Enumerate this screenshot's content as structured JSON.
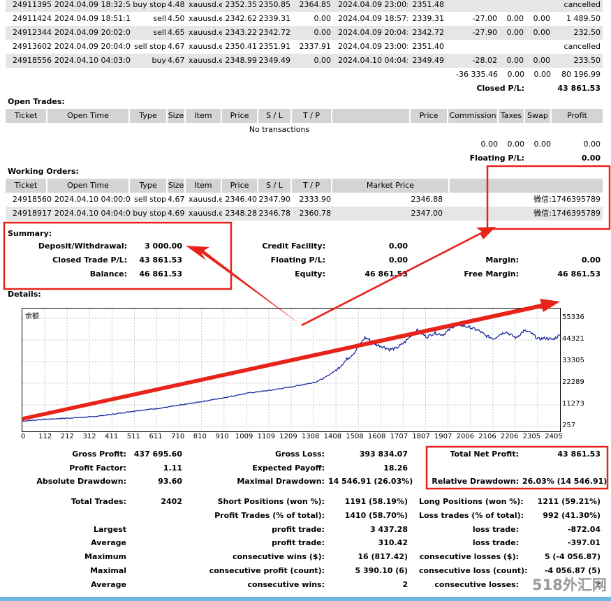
{
  "history_rows": [
    {
      "ticket": "24911395",
      "open_time": "2024.04.09 18:32:55",
      "type": "buy stop",
      "size": "4.48",
      "item": "xauusd.e",
      "price": "2352.35",
      "sl": "2350.85",
      "tp": "2364.85",
      "close_time": "2024.04.09 23:00:01",
      "close_price": "2351.48",
      "commission": "",
      "taxes": "",
      "swap": "",
      "profit": "cancelled"
    },
    {
      "ticket": "24911424",
      "open_time": "2024.04.09 18:51:15",
      "type": "sell",
      "size": "4.50",
      "item": "xauusd.e",
      "price": "2342.62",
      "sl": "2339.31",
      "tp": "0.00",
      "close_time": "2024.04.09 18:57:04",
      "close_price": "2339.31",
      "commission": "-27.00",
      "taxes": "0.00",
      "swap": "0.00",
      "profit": "1 489.50"
    },
    {
      "ticket": "24912344",
      "open_time": "2024.04.09 20:02:01",
      "type": "sell",
      "size": "4.65",
      "item": "xauusd.e",
      "price": "2343.22",
      "sl": "2342.72",
      "tp": "0.00",
      "close_time": "2024.04.09 20:04:07",
      "close_price": "2342.72",
      "commission": "-27.90",
      "taxes": "0.00",
      "swap": "0.00",
      "profit": "232.50"
    },
    {
      "ticket": "24913602",
      "open_time": "2024.04.09 20:04:09",
      "type": "sell stop",
      "size": "4.67",
      "item": "xauusd.e",
      "price": "2350.41",
      "sl": "2351.91",
      "tp": "2337.91",
      "close_time": "2024.04.09 23:00:02",
      "close_price": "2351.40",
      "commission": "",
      "taxes": "",
      "swap": "",
      "profit": "cancelled"
    },
    {
      "ticket": "24918556",
      "open_time": "2024.04.10 04:03:09",
      "type": "buy",
      "size": "4.67",
      "item": "xauusd.e",
      "price": "2348.99",
      "sl": "2349.49",
      "tp": "0.00",
      "close_time": "2024.04.10 04:04:05",
      "close_price": "2349.49",
      "commission": "-28.02",
      "taxes": "0.00",
      "swap": "0.00",
      "profit": "233.50"
    }
  ],
  "history_totals": {
    "commission": "-36 335.46",
    "taxes": "0.00",
    "swap": "0.00",
    "profit": "80 196.99"
  },
  "closed_pl": {
    "label": "Closed P/L:",
    "value": "43 861.53"
  },
  "open_trades": {
    "title": "Open Trades:",
    "headers": {
      "ticket": "Ticket",
      "open_time": "Open Time",
      "type": "Type",
      "size": "Size",
      "item": "Item",
      "price": "Price",
      "sl": "S / L",
      "tp": "T / P",
      "price2": "Price",
      "commission": "Commission",
      "taxes": "Taxes",
      "swap": "Swap",
      "profit": "Profit"
    },
    "empty": "No transactions",
    "totals": {
      "commission": "0.00",
      "taxes": "0.00",
      "swap": "0.00",
      "profit": "0.00"
    },
    "floating": {
      "label": "Floating P/L:",
      "value": "0.00"
    }
  },
  "working_orders": {
    "title": "Working Orders:",
    "headers": {
      "ticket": "Ticket",
      "open_time": "Open Time",
      "type": "Type",
      "size": "Size",
      "item": "Item",
      "price": "Price",
      "sl": "S / L",
      "tp": "T / P",
      "market_price": "Market Price"
    },
    "rows": [
      {
        "ticket": "24918560",
        "open_time": "2024.04.10 04:00:01",
        "type": "sell stop",
        "size": "4.67",
        "item": "xauusd.e",
        "price": "2346.40",
        "sl": "2347.90",
        "tp": "2333.90",
        "market_price": "2346.88",
        "comment": "微信:1746395789"
      },
      {
        "ticket": "24918917",
        "open_time": "2024.04.10 04:04:06",
        "type": "buy stop",
        "size": "4.69",
        "item": "xauusd.e",
        "price": "2348.28",
        "sl": "2346.78",
        "tp": "2360.78",
        "market_price": "2347.00",
        "comment": "微信:1746395789"
      }
    ]
  },
  "summary": {
    "title": "Summary:",
    "deposit": {
      "label": "Deposit/Withdrawal:",
      "value": "3 000.00"
    },
    "closed_trade": {
      "label": "Closed Trade P/L:",
      "value": "43 861.53"
    },
    "balance": {
      "label": "Balance:",
      "value": "46 861.53"
    },
    "credit": {
      "label": "Credit Facility:",
      "value": "0.00"
    },
    "floating": {
      "label": "Floating P/L:",
      "value": "0.00"
    },
    "equity": {
      "label": "Equity:",
      "value": "46 861.53"
    },
    "margin": {
      "label": "Margin:",
      "value": "0.00"
    },
    "free_margin": {
      "label": "Free Margin:",
      "value": "46 861.53"
    }
  },
  "details_title": "Details:",
  "chart_data": {
    "type": "line",
    "legend": "余额",
    "yticks": [
      "55336",
      "44321",
      "33305",
      "22289",
      "11273",
      "257"
    ],
    "xticks": [
      "0",
      "112",
      "212",
      "312",
      "411",
      "511",
      "611",
      "710",
      "810",
      "910",
      "1009",
      "1109",
      "1209",
      "1308",
      "1408",
      "1508",
      "1608",
      "1707",
      "1807",
      "1907",
      "2006",
      "2106",
      "2206",
      "2305",
      "2405"
    ],
    "ylim": [
      257,
      55336
    ],
    "xlim": [
      0,
      2402
    ],
    "series": [
      {
        "values": [
          [
            0,
            3000
          ],
          [
            100,
            3900
          ],
          [
            200,
            4500
          ],
          [
            312,
            5200
          ],
          [
            411,
            6600
          ],
          [
            511,
            8300
          ],
          [
            611,
            9500
          ],
          [
            710,
            11200
          ],
          [
            810,
            13100
          ],
          [
            910,
            15100
          ],
          [
            1009,
            17300
          ],
          [
            1109,
            18700
          ],
          [
            1209,
            20600
          ],
          [
            1308,
            22800
          ],
          [
            1350,
            25000
          ],
          [
            1408,
            29500
          ],
          [
            1450,
            34500
          ],
          [
            1480,
            37500
          ],
          [
            1508,
            42000
          ],
          [
            1530,
            45500
          ],
          [
            1550,
            44500
          ],
          [
            1580,
            42000
          ],
          [
            1608,
            41000
          ],
          [
            1640,
            39500
          ],
          [
            1670,
            40000
          ],
          [
            1707,
            43000
          ],
          [
            1740,
            47000
          ],
          [
            1760,
            49500
          ],
          [
            1807,
            45800
          ],
          [
            1840,
            47800
          ],
          [
            1880,
            47000
          ],
          [
            1907,
            49500
          ],
          [
            1940,
            52500
          ],
          [
            1970,
            51500
          ],
          [
            2006,
            50500
          ],
          [
            2040,
            49000
          ],
          [
            2070,
            46500
          ],
          [
            2106,
            45000
          ],
          [
            2130,
            47000
          ],
          [
            2160,
            48500
          ],
          [
            2206,
            45300
          ],
          [
            2240,
            49000
          ],
          [
            2270,
            48000
          ],
          [
            2305,
            44800
          ],
          [
            2340,
            45300
          ],
          [
            2370,
            44500
          ],
          [
            2402,
            46861
          ]
        ]
      }
    ]
  },
  "stats": {
    "gross_profit": {
      "label": "Gross Profit:",
      "value": "437 695.60"
    },
    "gross_loss": {
      "label": "Gross Loss:",
      "value": "393 834.07"
    },
    "total_net": {
      "label": "Total Net Profit:",
      "value": "43 861.53"
    },
    "profit_factor": {
      "label": "Profit Factor:",
      "value": "1.11"
    },
    "expected_payoff": {
      "label": "Expected Payoff:",
      "value": "18.26"
    },
    "abs_drawdown": {
      "label": "Absolute Drawdown:",
      "value": "93.60"
    },
    "max_drawdown": {
      "label": "Maximal Drawdown:",
      "value": "14 546.91 (26.03%)"
    },
    "rel_drawdown": {
      "label": "Relative Drawdown:",
      "value": "26.03% (14 546.91)"
    },
    "total_trades": {
      "label": "Total Trades:",
      "value": "2402"
    },
    "short_pos": {
      "label": "Short Positions (won %):",
      "value": "1191 (58.19%)"
    },
    "long_pos": {
      "label": "Long Positions (won %):",
      "value": "1211 (59.21%)"
    },
    "profit_trades": {
      "label": "Profit Trades (% of total):",
      "value": "1410 (58.70%)"
    },
    "loss_trades": {
      "label": "Loss trades (% of total):",
      "value": "992 (41.30%)"
    },
    "largest": {
      "label": "Largest"
    },
    "largest_profit": {
      "label": "profit trade:",
      "value": "3 437.28"
    },
    "largest_loss": {
      "label": "loss trade:",
      "value": "-872.04"
    },
    "average": {
      "label": "Average"
    },
    "average_profit": {
      "label": "profit trade:",
      "value": "310.42"
    },
    "average_loss": {
      "label": "loss trade:",
      "value": "-397.01"
    },
    "maximum": {
      "label": "Maximum"
    },
    "max_cons_wins": {
      "label": "consecutive wins ($):",
      "value": "16 (817.42)"
    },
    "max_cons_losses": {
      "label": "consecutive losses ($):",
      "value": "5 (-4 056.87)"
    },
    "maximal": {
      "label": "Maximal"
    },
    "maximal_cons_profit": {
      "label": "consecutive profit (count):",
      "value": "5 390.10 (6)"
    },
    "maximal_cons_loss": {
      "label": "consecutive loss (count):",
      "value": "-4 056.87 (5)"
    },
    "average2": {
      "label": "Average"
    },
    "avg_cons_wins": {
      "label": "consecutive wins:",
      "value": "2"
    },
    "avg_cons_losses": {
      "label": "consecutive losses:",
      "value": "2"
    }
  },
  "watermark": "518外汇网",
  "annotation_color": "#e8231a"
}
